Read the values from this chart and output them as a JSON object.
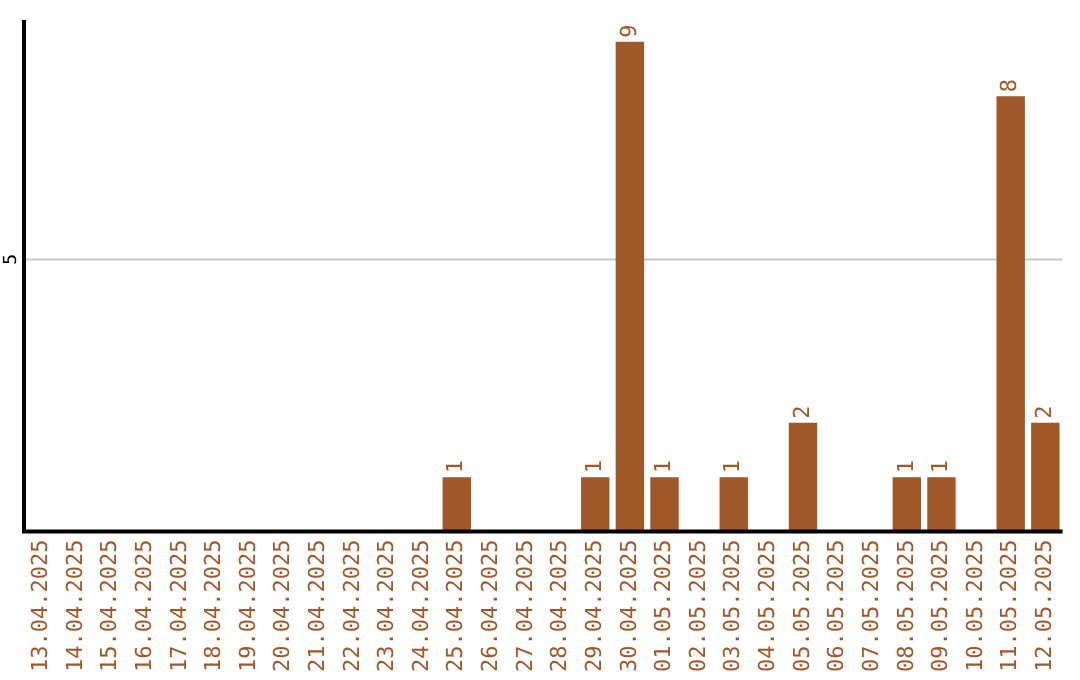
{
  "chart_data": {
    "type": "bar",
    "categories": [
      "13.04.2025",
      "14.04.2025",
      "15.04.2025",
      "16.04.2025",
      "17.04.2025",
      "18.04.2025",
      "19.04.2025",
      "20.04.2025",
      "21.04.2025",
      "22.04.2025",
      "23.04.2025",
      "24.04.2025",
      "25.04.2025",
      "26.04.2025",
      "27.04.2025",
      "28.04.2025",
      "29.04.2025",
      "30.04.2025",
      "01.05.2025",
      "02.05.2025",
      "03.05.2025",
      "04.05.2025",
      "05.05.2025",
      "06.05.2025",
      "07.05.2025",
      "08.05.2025",
      "09.05.2025",
      "10.05.2025",
      "11.05.2025",
      "12.05.2025"
    ],
    "values": [
      null,
      null,
      null,
      null,
      null,
      null,
      null,
      null,
      null,
      null,
      null,
      null,
      1,
      null,
      null,
      null,
      1,
      9,
      1,
      null,
      1,
      null,
      2,
      null,
      null,
      1,
      1,
      null,
      8,
      2
    ],
    "data_labels": true,
    "color": "#a0582a",
    "ylim": [
      0,
      9.4
    ],
    "ref_lines": [
      {
        "axis": "y",
        "value": 5,
        "label": "5",
        "color": "#c8c8c8"
      }
    ],
    "legend": false
  }
}
